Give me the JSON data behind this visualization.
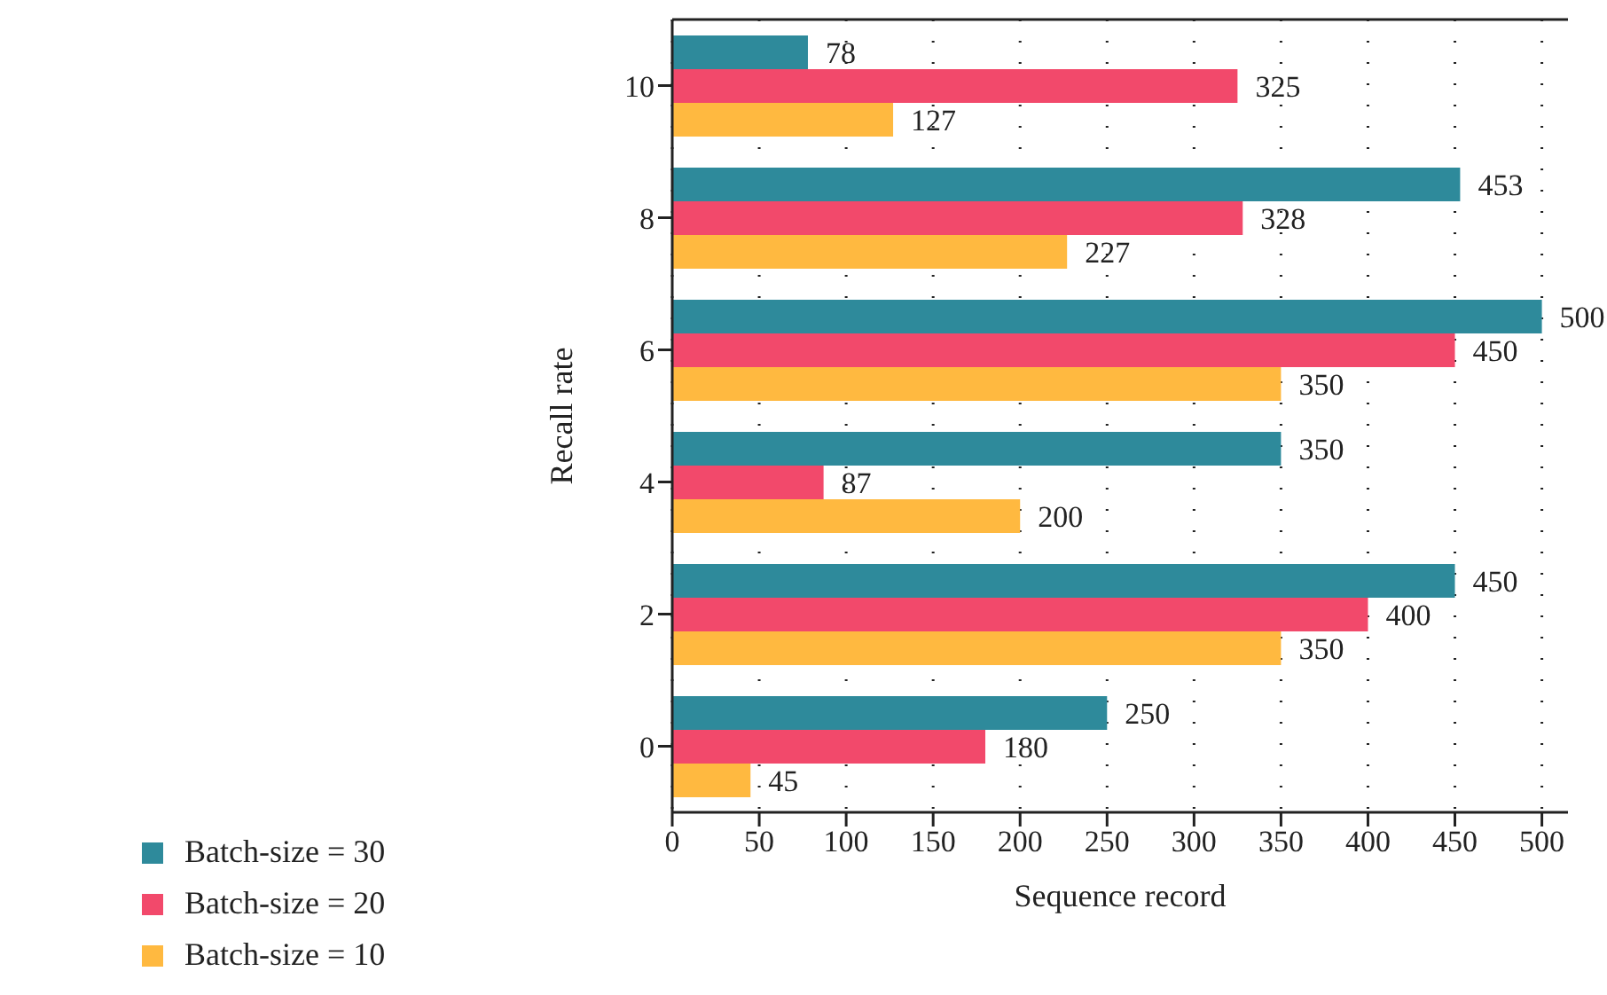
{
  "chart_data": {
    "type": "bar",
    "orientation": "horizontal",
    "xlabel": "Sequence record",
    "ylabel": "Recall rate",
    "categories": [
      "10",
      "8",
      "6",
      "4",
      "2",
      "0"
    ],
    "series": [
      {
        "name": "Batch-size = 30",
        "color": "#2e8a9b",
        "values": [
          78,
          453,
          500,
          350,
          450,
          250
        ]
      },
      {
        "name": "Batch-size = 20",
        "color": "#f2496b",
        "values": [
          325,
          328,
          450,
          87,
          400,
          180
        ]
      },
      {
        "name": "Batch-size = 10",
        "color": "#ffb940",
        "values": [
          127,
          227,
          350,
          200,
          350,
          45
        ]
      }
    ],
    "xlim": [
      0,
      515
    ],
    "xticks": [
      0,
      50,
      100,
      150,
      200,
      250,
      300,
      350,
      400,
      450,
      500
    ],
    "grid": "x",
    "legend": "bottom left",
    "data_labels": true
  }
}
